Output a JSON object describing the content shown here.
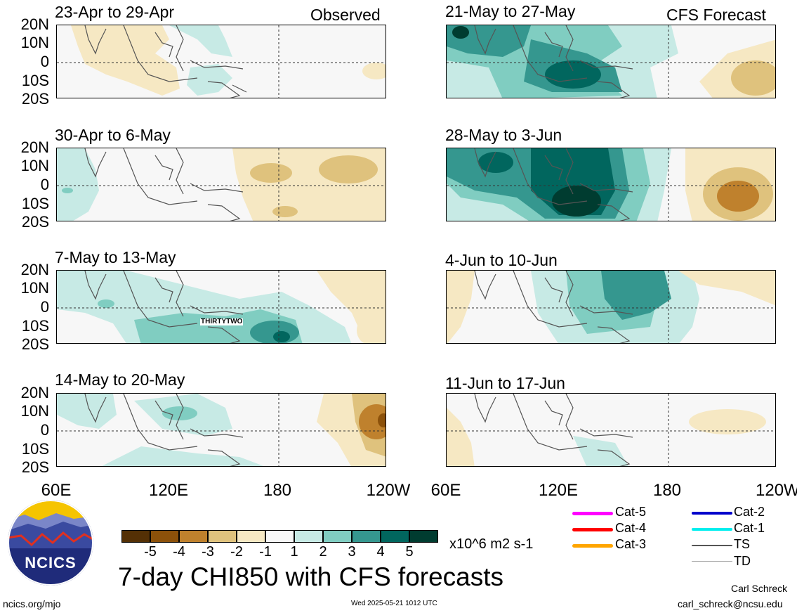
{
  "labels": {
    "observed": "Observed",
    "forecast": "CFS Forecast"
  },
  "panels": [
    {
      "title": "23-Apr to 29-Apr",
      "col": 0,
      "row": 0,
      "annotation": ""
    },
    {
      "title": "30-Apr to 6-May",
      "col": 0,
      "row": 1,
      "annotation": ""
    },
    {
      "title": "7-May to 13-May",
      "col": 0,
      "row": 2,
      "annotation": "THIRTYTWO"
    },
    {
      "title": "14-May to 20-May",
      "col": 0,
      "row": 3,
      "annotation": ""
    },
    {
      "title": "21-May to 27-May",
      "col": 1,
      "row": 0,
      "annotation": ""
    },
    {
      "title": "28-May to 3-Jun",
      "col": 1,
      "row": 1,
      "annotation": ""
    },
    {
      "title": "4-Jun to 10-Jun",
      "col": 1,
      "row": 2,
      "annotation": ""
    },
    {
      "title": "11-Jun to 17-Jun",
      "col": 1,
      "row": 3,
      "annotation": ""
    }
  ],
  "lat_labels": [
    "20N",
    "10N",
    "0",
    "10S",
    "20S"
  ],
  "lon_labels": [
    "60E",
    "120E",
    "180",
    "120W"
  ],
  "colorbar": {
    "colors": [
      "#543005",
      "#8c510a",
      "#bf812d",
      "#dfc27d",
      "#f6e8c3",
      "#f7f7f7",
      "#c7eae5",
      "#80cdc1",
      "#35978f",
      "#01665e",
      "#003c30"
    ],
    "tick_labels": [
      "-5",
      "-4",
      "-3",
      "-2",
      "-1",
      "1",
      "2",
      "3",
      "4",
      "5"
    ],
    "units": "x10^6 m2 s-1"
  },
  "title": "7-day CHI850 with CFS forecasts",
  "logo_text": "NCICS",
  "url": "ncics.org/mjo",
  "timestamp": "Wed 2025-05-21 1012 UTC",
  "author": "Carl Schreck",
  "email": "carl_schreck@ncsu.edu",
  "storm_legend": [
    {
      "label": "Cat-5",
      "color": "#ff00ff"
    },
    {
      "label": "Cat-4",
      "color": "#ff0000"
    },
    {
      "label": "Cat-3",
      "color": "#ffa500"
    },
    {
      "label": "Cat-2",
      "color": "#0000cc"
    },
    {
      "label": "Cat-1",
      "color": "#00eeee"
    },
    {
      "label": "TS",
      "color": "#555555"
    },
    {
      "label": "TD",
      "color": "#aaaaaa"
    }
  ]
}
